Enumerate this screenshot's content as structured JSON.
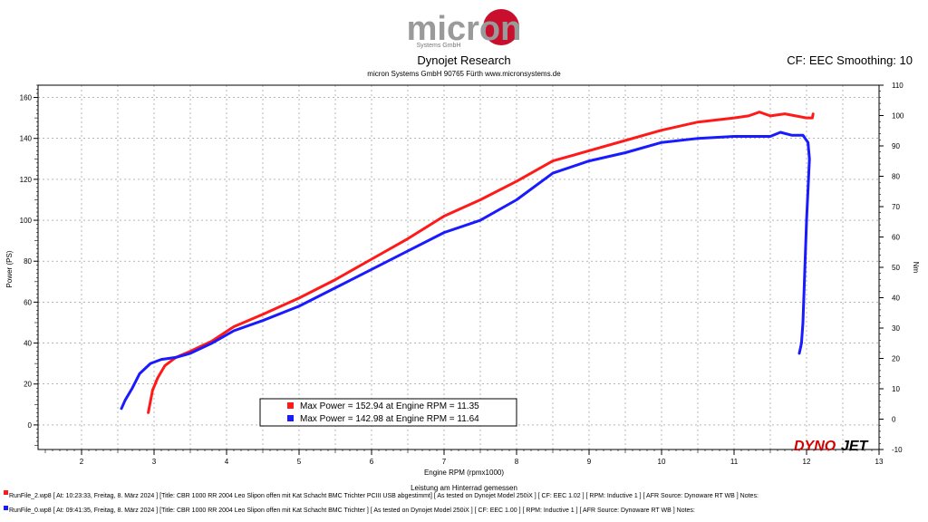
{
  "header": {
    "logo_text": "micron",
    "logo_sub": "Systems GmbH",
    "title": "Dynojet Research",
    "subtitle": "micron Systems GmbH  90765 Fürth www.micronsystems.de",
    "cf_text": "CF: EEC Smoothing: 10"
  },
  "colors": {
    "red": "#ff1a1a",
    "blue": "#1a1aff",
    "brand_red": "#d40000"
  },
  "brand": {
    "dyno": "DYNO",
    "jet": "JET"
  },
  "legend": {
    "entries": [
      {
        "text": "Max Power = 152.94 at Engine RPM = 11.35",
        "color": "#ff1a1a"
      },
      {
        "text": "Max Power = 142.98 at Engine RPM = 11.64",
        "color": "#1a1aff"
      }
    ]
  },
  "footer": {
    "lines": [
      {
        "text": "RunFile_2.wp8 [ At: 10:23:33, Freitag, 8. März 2024 ] [Title: CBR 1000 RR 2004 Leo Slipon offen mit Kat Schacht BMC Trichter PCIII USB abgestimmt]  [ As tested on Dynojet Model 250iX ] [ CF: EEC 1.02 ] [ RPM: Inductive 1 ] [ AFR Source: Dynoware RT WB ] Notes:",
        "color": "#ff1a1a"
      },
      {
        "text": "RunFile_0.wp8 [ At: 09:41:35, Freitag, 8. März 2024 ] [Title: CBR 1000 RR 2004 Leo Slipon offen mit Kat Schacht BMC Trichter ]  [ As tested on Dynojet Model 250iX ] [ CF: EEC 1.00 ] [ RPM: Inductive 1 ] [ AFR Source: Dynoware RT WB ] Notes:",
        "color": "#1a1aff"
      }
    ]
  },
  "chart_data": {
    "type": "line",
    "xlabel": "Engine RPM (rpmx1000)",
    "xlabel_sub": "Leistung am Hinterrad gemessen",
    "ylabel": "Power (PS)",
    "ylabel_right": "Nm",
    "xlim": [
      1.4,
      13
    ],
    "ylim": [
      -12,
      166
    ],
    "y2lim": [
      -10,
      110
    ],
    "x_ticks": [
      2,
      3,
      4,
      5,
      6,
      7,
      8,
      9,
      10,
      11,
      12,
      13
    ],
    "y_ticks": [
      0,
      20,
      40,
      60,
      80,
      100,
      120,
      140,
      160
    ],
    "y2_ticks": [
      -10,
      0,
      10,
      20,
      30,
      40,
      50,
      60,
      70,
      80,
      90,
      100,
      110
    ],
    "grid": true,
    "series": [
      {
        "color": "#ff1a1a",
        "x": [
          2.92,
          2.98,
          3.05,
          3.15,
          3.3,
          3.5,
          3.8,
          4.1,
          4.5,
          5.0,
          5.5,
          6.0,
          6.5,
          7.0,
          7.5,
          8.0,
          8.5,
          9.0,
          9.5,
          10.0,
          10.5,
          11.0,
          11.2,
          11.35,
          11.5,
          11.7,
          11.85,
          12.0,
          12.08,
          12.09
        ],
        "y": [
          6,
          17,
          23,
          29,
          33,
          36,
          41,
          48,
          54,
          62,
          71,
          81,
          91,
          102,
          110,
          119,
          129,
          134,
          139,
          144,
          148,
          150,
          151,
          152.9,
          151,
          152,
          151,
          150,
          150,
          152
        ]
      },
      {
        "color": "#1a1aff",
        "x": [
          2.55,
          2.6,
          2.7,
          2.8,
          2.95,
          3.1,
          3.3,
          3.5,
          3.8,
          4.1,
          4.5,
          5.0,
          5.5,
          6.0,
          6.5,
          7.0,
          7.5,
          8.0,
          8.5,
          9.0,
          9.5,
          10.0,
          10.5,
          11.0,
          11.3,
          11.5,
          11.64,
          11.8,
          11.95,
          12.02,
          12.04,
          12.0,
          11.97,
          11.95,
          11.93,
          11.9
        ],
        "y": [
          8,
          12,
          18,
          25,
          30,
          32,
          33,
          35,
          40,
          46,
          51,
          58,
          67,
          76,
          85,
          94,
          100,
          110,
          123,
          129,
          133,
          138,
          140,
          141,
          141,
          141,
          142.98,
          141.5,
          141.5,
          138,
          130,
          100,
          70,
          50,
          40,
          35
        ]
      }
    ]
  }
}
